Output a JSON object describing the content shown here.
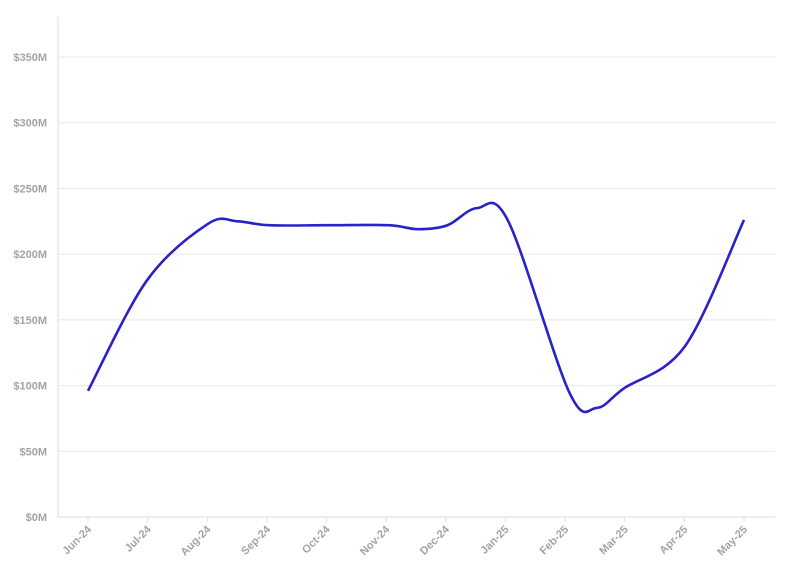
{
  "chart_data": {
    "type": "line",
    "title": "",
    "xlabel": "",
    "ylabel": "",
    "categories": [
      "Jun-24",
      "Jul-24",
      "Aug-24",
      "Sep-24",
      "Oct-24",
      "Nov-24",
      "Dec-24",
      "Jan-25",
      "Feb-25",
      "Mar-25",
      "Apr-25",
      "May-25"
    ],
    "series": [
      {
        "name": "",
        "color": "#2a22c9",
        "x": [
          "2024-06-01",
          "2024-07-01",
          "2024-08-01",
          "2024-08-16",
          "2024-09-01",
          "2024-10-01",
          "2024-11-01",
          "2024-11-16",
          "2024-12-01",
          "2024-12-16",
          "2025-01-01",
          "2025-02-01",
          "2025-02-15",
          "2025-03-01",
          "2025-04-01",
          "2025-05-01"
        ],
        "values": [
          96,
          180,
          223,
          225,
          222,
          222,
          222,
          219,
          222,
          235,
          225,
          95,
          83,
          98,
          130,
          226
        ]
      }
    ],
    "y_ticks": [
      0,
      50,
      100,
      150,
      200,
      250,
      300,
      350
    ],
    "y_tick_labels": [
      "$0M",
      "$50M",
      "$100M",
      "$150M",
      "$200M",
      "$250M",
      "$300M",
      "$350M"
    ],
    "ylim": [
      0,
      350
    ],
    "xlim": [
      "2024-05-17",
      "2025-05-16"
    ],
    "y_unit": "$M",
    "grid": true,
    "legend": "none",
    "line_smoothing": "spline"
  }
}
